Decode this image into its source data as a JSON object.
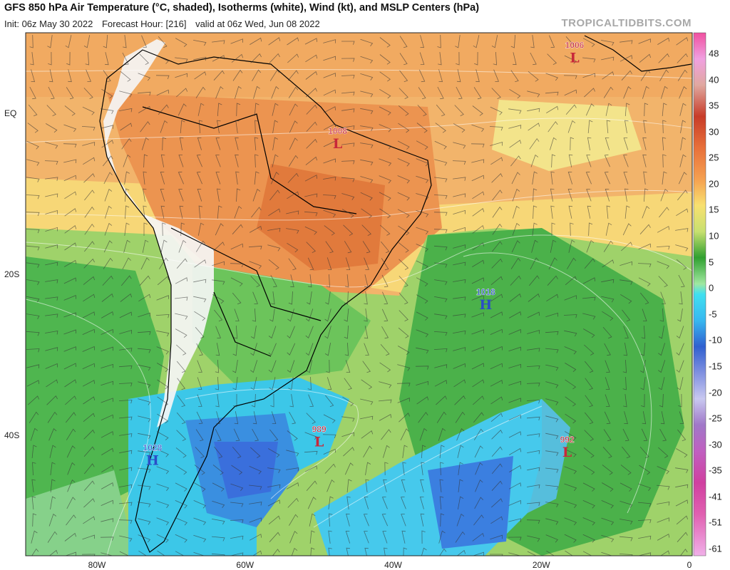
{
  "header": {
    "title": "GFS 850 hPa Air Temperature (°C, shaded), Isotherms (white), Wind (kt), and MSLP Centers (hPa)",
    "init": "Init: 06z May 30 2022",
    "forecast_hour": "Forecast Hour: [216]",
    "valid": "valid at 06z Wed, Jun 08 2022",
    "brand": "TROPICALTIDBITS.COM"
  },
  "axes": {
    "lat_labels": [
      {
        "text": "EQ",
        "lat": 0
      },
      {
        "text": "20S",
        "lat": -20
      },
      {
        "text": "40S",
        "lat": -40
      }
    ],
    "lon_labels": [
      {
        "text": "80W",
        "lon": -80
      },
      {
        "text": "60W",
        "lon": -60
      },
      {
        "text": "40W",
        "lon": -40
      },
      {
        "text": "20W",
        "lon": -20
      },
      {
        "text": "0",
        "lon": 0
      }
    ]
  },
  "pressure_centers": [
    {
      "type": "L",
      "value": "1006",
      "lon": -15.5,
      "lat": 7.5
    },
    {
      "type": "L",
      "value": "1008",
      "lon": -47.5,
      "lat": -3.2
    },
    {
      "type": "H",
      "value": "1018",
      "lon": -27.5,
      "lat": -23.2
    },
    {
      "type": "H",
      "value": "1028",
      "lon": -72.5,
      "lat": -42.5
    },
    {
      "type": "L",
      "value": "989",
      "lon": -50.0,
      "lat": -40.2
    },
    {
      "type": "L",
      "value": "992",
      "lon": -16.5,
      "lat": -41.5
    }
  ],
  "colors": {
    "low_center": "#c8283a",
    "high_center": "#2a4ec8",
    "isotherm": "#ffffff",
    "border": "#000000",
    "wind_barb": "#333333"
  },
  "colorbar": {
    "labels": [
      "48",
      "40",
      "35",
      "30",
      "25",
      "20",
      "15",
      "10",
      "5",
      "0",
      "-5",
      "-10",
      "-15",
      "-20",
      "-25",
      "-30",
      "-35",
      "-41",
      "-51",
      "-61"
    ]
  }
}
